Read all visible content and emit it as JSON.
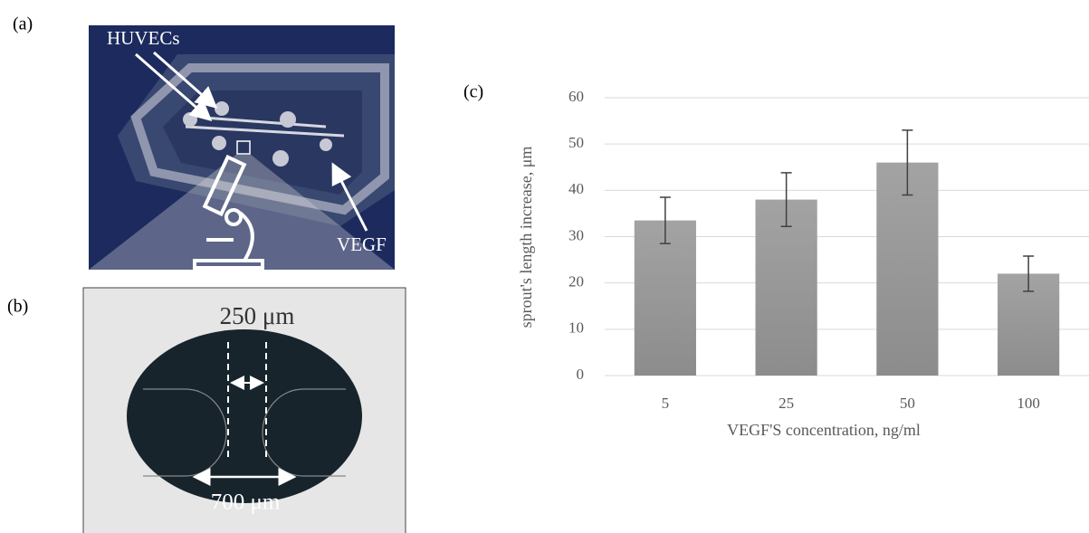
{
  "panels": {
    "a": {
      "label": "(a)",
      "cells": "HUVECs",
      "factor": "VEGF"
    },
    "b": {
      "label": "(b)",
      "gap": "250 μm",
      "width": "700 μm"
    }
  },
  "chart_data": {
    "type": "bar",
    "label": "(c)",
    "x_label": "VEGF'S concentration,  ng/ml",
    "y_label": "sprout's length increase,  μm",
    "categories": [
      "5",
      "25",
      "50",
      "100"
    ],
    "values": [
      33.5,
      38,
      46,
      22
    ],
    "errors": [
      5,
      5.8,
      7,
      3.8
    ],
    "ylim": [
      0,
      60
    ],
    "yticks": [
      0,
      10,
      20,
      30,
      40,
      50,
      60
    ],
    "grid": true
  }
}
